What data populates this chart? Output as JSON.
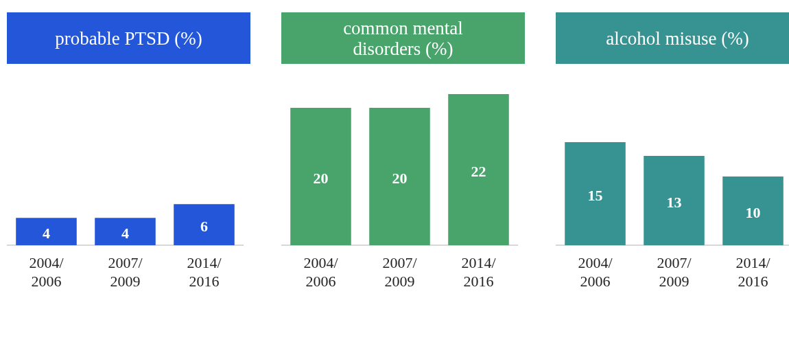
{
  "chart_data": [
    {
      "type": "bar",
      "title": "probable PTSD (%)",
      "categories": [
        "2004/2006",
        "2007/2009",
        "2014/2016"
      ],
      "values": [
        4,
        4,
        6
      ],
      "color": "#2356d8",
      "tick_labels": "x",
      "data_labels": true,
      "legend": false,
      "grid": false
    },
    {
      "type": "bar",
      "title": "common mental disorders (%)",
      "categories": [
        "2004/2006",
        "2007/2009",
        "2014/2016"
      ],
      "values": [
        20,
        20,
        22
      ],
      "color": "#48a46b",
      "tick_labels": "x",
      "data_labels": true,
      "legend": false,
      "grid": false
    },
    {
      "type": "bar",
      "title": "alcohol misuse (%)",
      "categories": [
        "2004/2006",
        "2007/2009",
        "2014/2016"
      ],
      "values": [
        15,
        13,
        10
      ],
      "color": "#379391",
      "tick_labels": "x",
      "data_labels": true,
      "legend": false,
      "grid": false
    }
  ]
}
